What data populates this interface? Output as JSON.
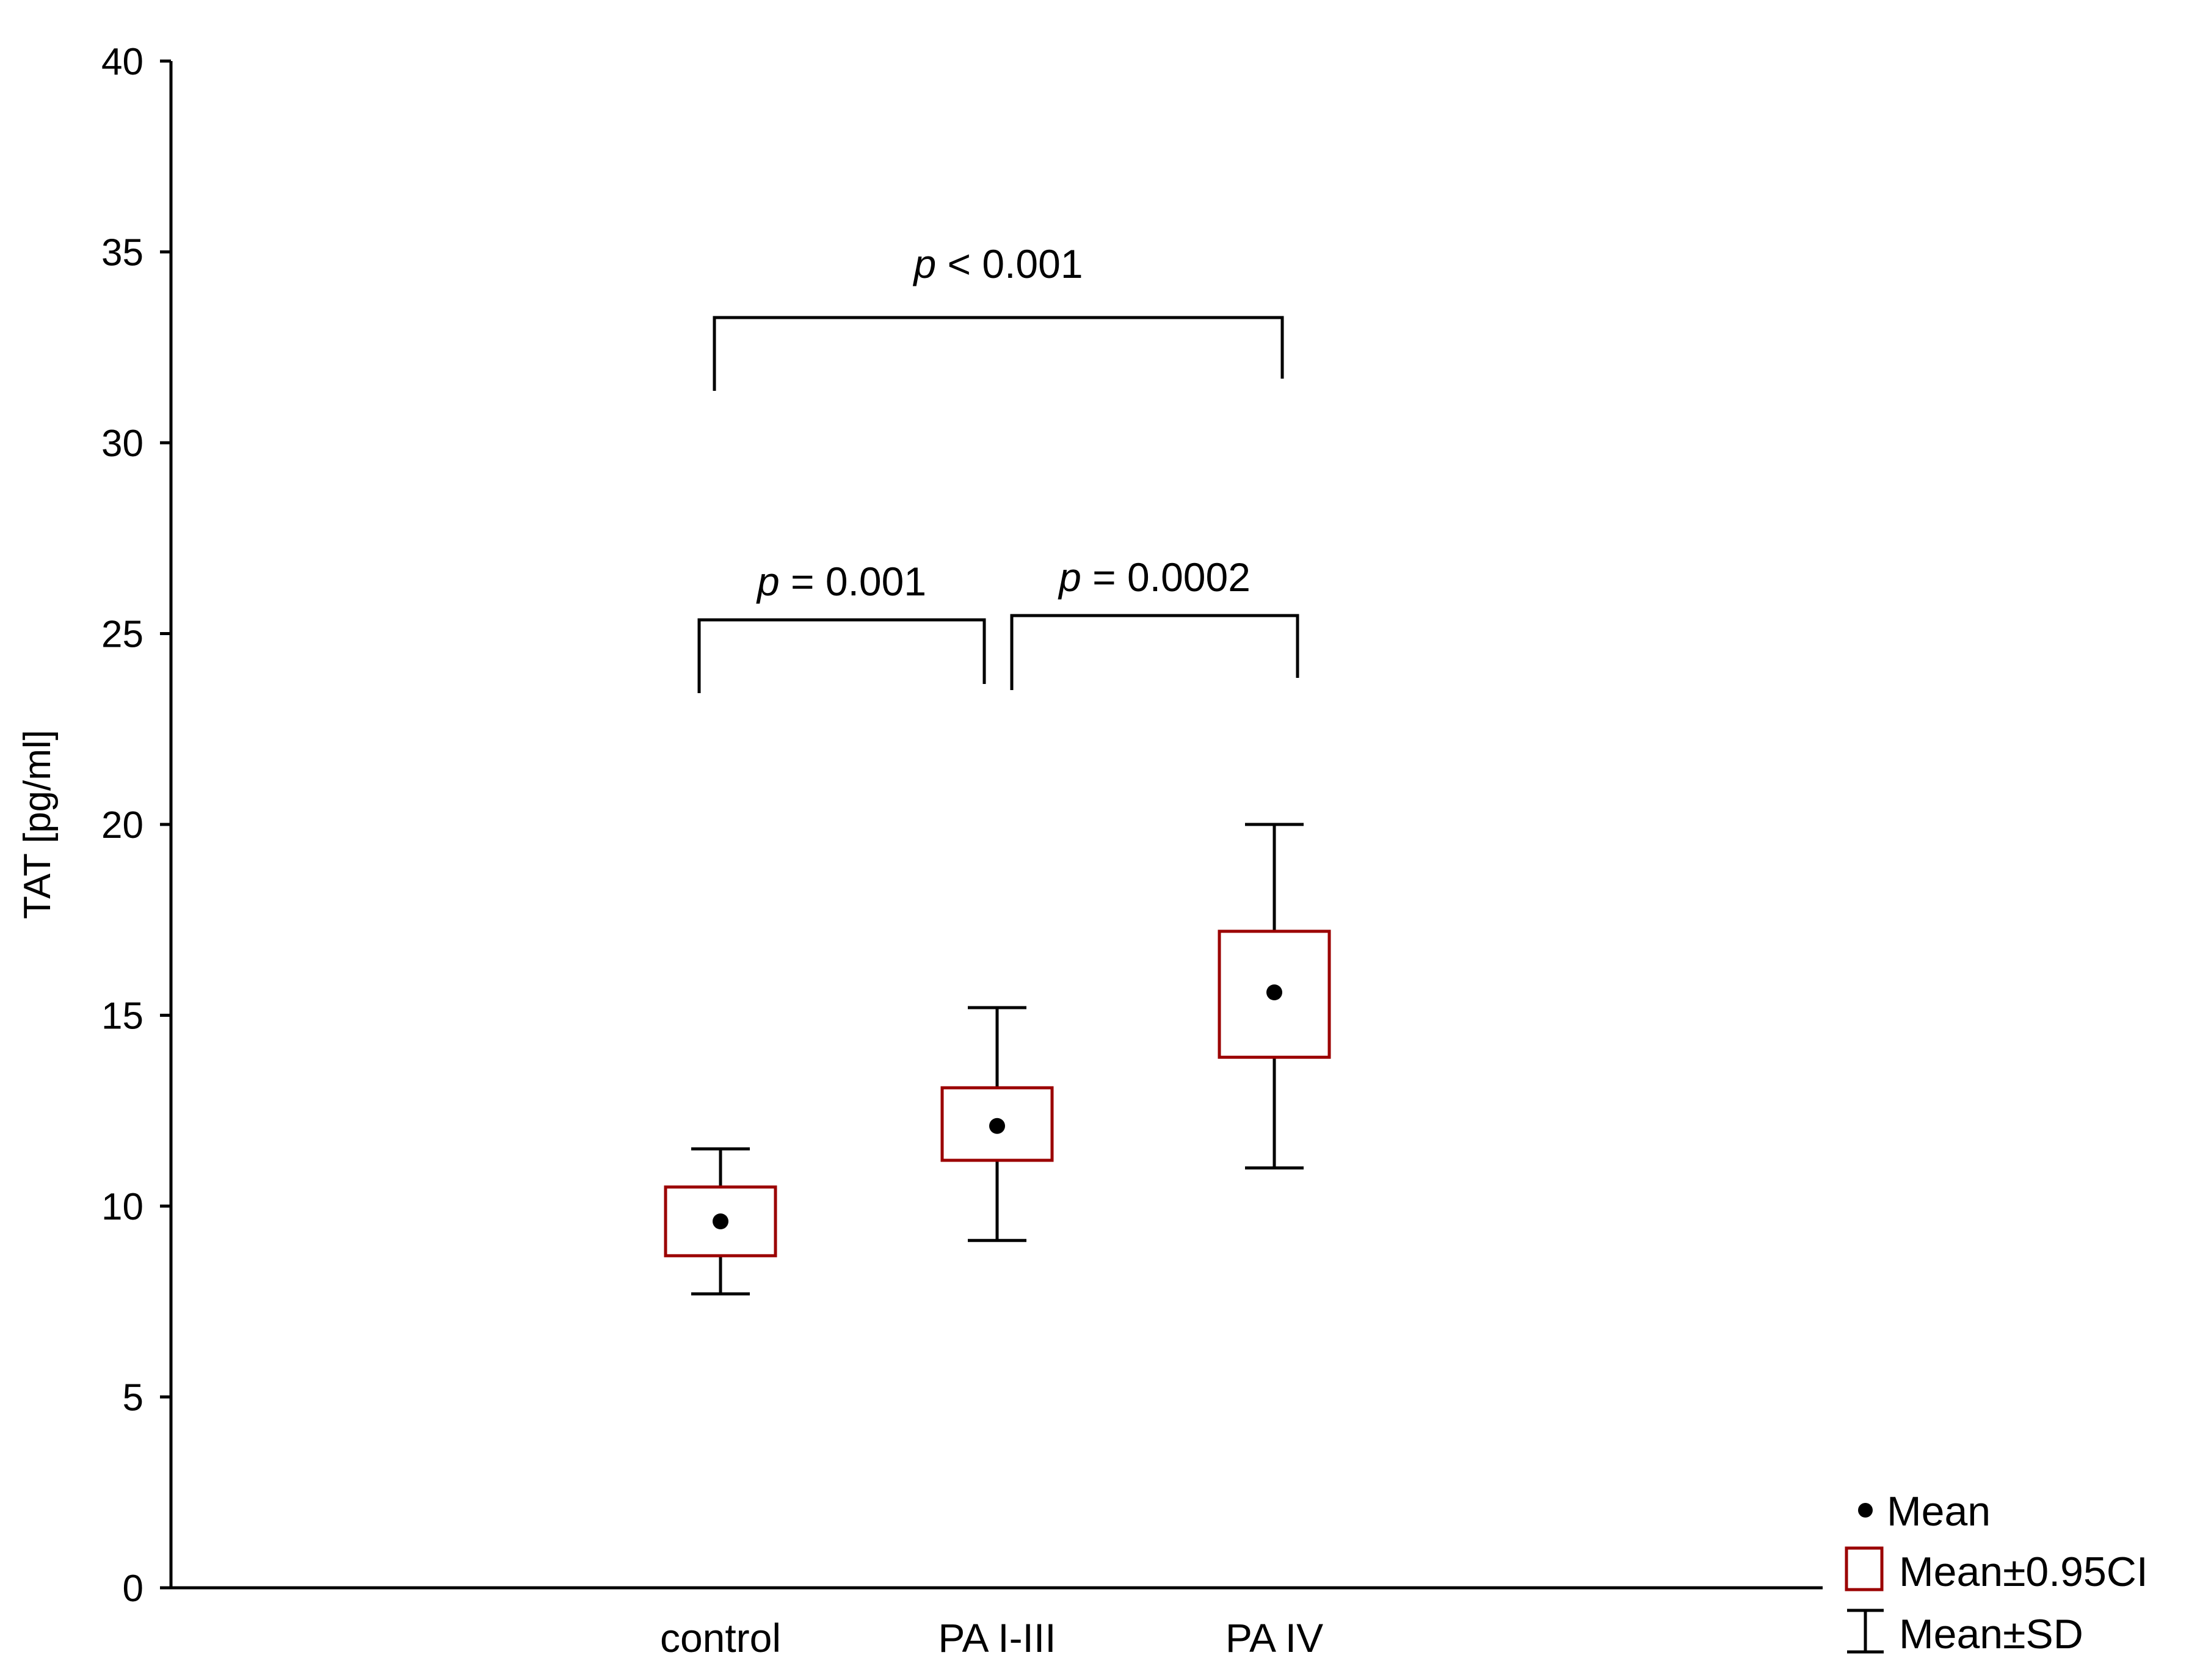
{
  "chart_data": {
    "type": "box",
    "ylabel": "TAT [pg/ml]",
    "ylim": [
      0,
      40
    ],
    "yticks": [
      "0",
      "5",
      "10",
      "15",
      "20",
      "25",
      "30",
      "35",
      "40"
    ],
    "categories": [
      "control",
      "PA I-III",
      "PA IV"
    ],
    "series": [
      {
        "category": "control",
        "mean": 9.6,
        "ci_low": 8.7,
        "ci_high": 10.5,
        "sd_low": 7.7,
        "sd_high": 11.5
      },
      {
        "category": "PA I-III",
        "mean": 12.1,
        "ci_low": 11.2,
        "ci_high": 13.1,
        "sd_low": 9.1,
        "sd_high": 15.2
      },
      {
        "category": "PA IV",
        "mean": 15.6,
        "ci_low": 13.9,
        "ci_high": 17.2,
        "sd_low": 11.0,
        "sd_high": 20.0
      }
    ],
    "annotations": [
      {
        "p": "p",
        "rest": " < 0.001",
        "from": "control",
        "to": "PA IV"
      },
      {
        "p": "p",
        "rest": " = 0.001",
        "from": "control",
        "to": "PA I-III"
      },
      {
        "p": "p",
        "rest": " = 0.0002",
        "from": "PA I-III",
        "to": "PA IV"
      }
    ],
    "legend": {
      "position": "bottom-right",
      "items": [
        {
          "symbol": "dot",
          "label": "Mean"
        },
        {
          "symbol": "box",
          "label": "Mean±0.95CI"
        },
        {
          "symbol": "whisker",
          "label": "Mean±SD"
        }
      ]
    },
    "colors": {
      "ci_box": "#9b0000",
      "mean_dot": "#000000",
      "axis": "#000000"
    },
    "grid": false
  }
}
